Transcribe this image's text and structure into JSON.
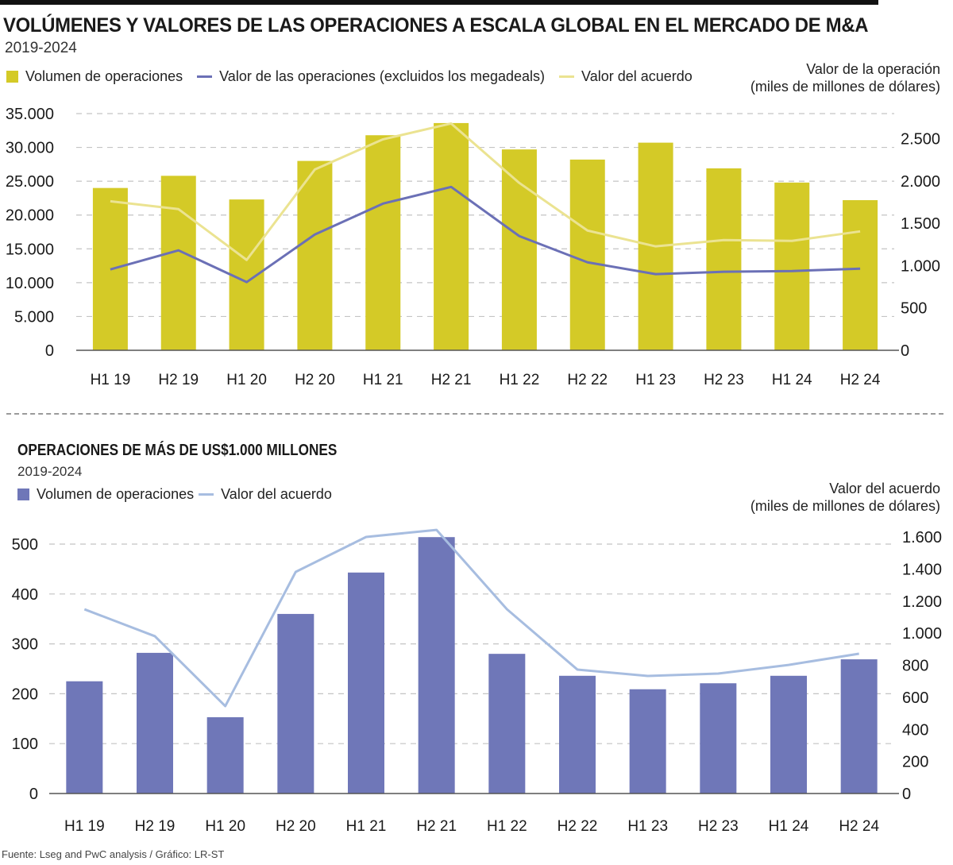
{
  "chart_data": [
    {
      "type": "bar",
      "title": "VOLÚMENES Y VALORES DE LAS OPERACIONES A ESCALA GLOBAL EN EL MERCADO DE M&A",
      "subtitle": "2019-2024",
      "categories": [
        "H1 19",
        "H2 19",
        "H1 20",
        "H2 20",
        "H1 21",
        "H2 21",
        "H1 22",
        "H2 22",
        "H1 23",
        "H2 23",
        "H1 24",
        "H2 24"
      ],
      "series": [
        {
          "name": "Volumen de operaciones",
          "type": "bar",
          "axis": "left",
          "color": "#d4ca27",
          "values": [
            24000,
            25800,
            22300,
            28000,
            31800,
            33600,
            29700,
            28200,
            30700,
            26900,
            24800,
            22200
          ]
        },
        {
          "name": "Valor de las operaciones (excluidos los megadeals)",
          "type": "line",
          "axis": "right",
          "color": "#6b70b6",
          "values": [
            955,
            1180,
            805,
            1367,
            1732,
            1929,
            1348,
            1039,
            899,
            927,
            936,
            964
          ]
        },
        {
          "name": "Valor del acuerdo",
          "type": "line",
          "axis": "right",
          "color": "#ebe391",
          "values": [
            1760,
            1667,
            1067,
            2135,
            2491,
            2678,
            1976,
            1414,
            1227,
            1301,
            1292,
            1404
          ]
        }
      ],
      "y_left": {
        "ylim": [
          0,
          35000
        ],
        "ticks": [
          "0",
          "5.000",
          "10.000",
          "15.000",
          "20.000",
          "25.000",
          "30.000",
          "35.000"
        ],
        "tick_values": [
          0,
          5000,
          10000,
          15000,
          20000,
          25000,
          30000,
          35000
        ]
      },
      "y_right": {
        "ylim": [
          0,
          2795
        ],
        "label_line1": "Valor de la operación",
        "label_line2": "(miles de millones de dólares)",
        "ticks": [
          "0",
          "500",
          "1.000",
          "1.500",
          "2.000",
          "2.500"
        ],
        "tick_values": [
          0,
          500,
          1000,
          1500,
          2000,
          2500
        ]
      },
      "xlabel": "",
      "grid": true,
      "legend": "top-left"
    },
    {
      "type": "bar",
      "title": "OPERACIONES DE MÁS DE US$1.000 MILLONES",
      "subtitle": "2019-2024",
      "categories": [
        "H1 19",
        "H2 19",
        "H1 20",
        "H2 20",
        "H1 21",
        "H2 21",
        "H1 22",
        "H2 22",
        "H1 23",
        "H2 23",
        "H1 24",
        "H2 24"
      ],
      "series": [
        {
          "name": "Volumen de operaciones",
          "type": "bar",
          "axis": "left",
          "color": "#6f77b8",
          "values": [
            225,
            282,
            153,
            360,
            443,
            514,
            280,
            236,
            209,
            221,
            236,
            269
          ]
        },
        {
          "name": "Valor del acuerdo",
          "type": "line",
          "axis": "right",
          "color": "#a7bde0",
          "values": [
            1149,
            981,
            545,
            1382,
            1600,
            1644,
            1149,
            773,
            733,
            748,
            802,
            872
          ]
        }
      ],
      "y_left": {
        "ylim": [
          0,
          500
        ],
        "ticks": [
          "0",
          "100",
          "200",
          "300",
          "400",
          "500"
        ],
        "tick_values": [
          0,
          100,
          200,
          300,
          400,
          500
        ]
      },
      "y_right": {
        "ylim": [
          0,
          1600
        ],
        "label_line1": "Valor del acuerdo",
        "label_line2": "(miles de millones de dólares)",
        "ticks": [
          "0",
          "200",
          "400",
          "600",
          "800",
          "1.000",
          "1.200",
          "1.400",
          "1.600"
        ],
        "tick_values": [
          0,
          200,
          400,
          600,
          800,
          1000,
          1200,
          1400,
          1600
        ]
      },
      "xlabel": "",
      "grid": true,
      "legend": "top-left"
    }
  ],
  "footer": "Fuente: Lseg and PwC analysis / Gráfico: LR-ST"
}
